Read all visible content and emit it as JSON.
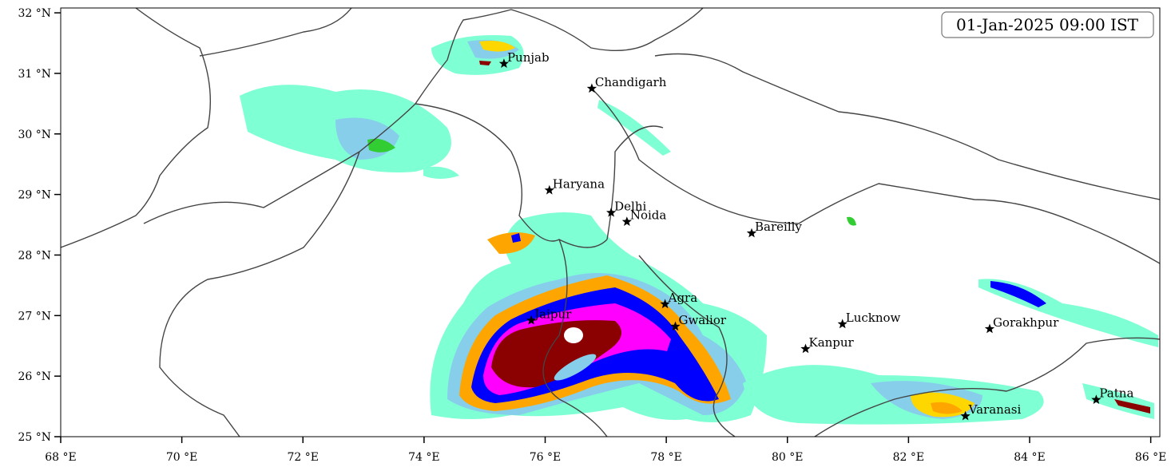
{
  "map": {
    "title": "01-Jan-2025 09:00 IST",
    "xlim": [
      68,
      86.15
    ],
    "ylim": [
      25,
      32.08
    ],
    "xticks": [
      {
        "value": 68,
        "label": "68 °E"
      },
      {
        "value": 70,
        "label": "70 °E"
      },
      {
        "value": 72,
        "label": "72 °E"
      },
      {
        "value": 74,
        "label": "74 °E"
      },
      {
        "value": 76,
        "label": "76 °E"
      },
      {
        "value": 78,
        "label": "78 °E"
      },
      {
        "value": 80,
        "label": "80 °E"
      },
      {
        "value": 82,
        "label": "82 °E"
      },
      {
        "value": 84,
        "label": "84 °E"
      },
      {
        "value": 86,
        "label": "86 °E"
      }
    ],
    "yticks": [
      {
        "value": 25,
        "label": "25 °N"
      },
      {
        "value": 26,
        "label": "26 °N"
      },
      {
        "value": 27,
        "label": "27 °N"
      },
      {
        "value": 28,
        "label": "28 °N"
      },
      {
        "value": 29,
        "label": "29 °N"
      },
      {
        "value": 30,
        "label": "30 °N"
      },
      {
        "value": 31,
        "label": "31 °N"
      },
      {
        "value": 32,
        "label": "32 °N"
      }
    ],
    "cities": [
      {
        "name": "Punjab",
        "lon": 75.32,
        "lat": 31.16
      },
      {
        "name": "Chandigarh",
        "lon": 76.77,
        "lat": 30.75
      },
      {
        "name": "Haryana",
        "lon": 76.07,
        "lat": 29.07
      },
      {
        "name": "Delhi",
        "lon": 77.09,
        "lat": 28.7
      },
      {
        "name": "Noida",
        "lon": 77.35,
        "lat": 28.55
      },
      {
        "name": "Bareilly",
        "lon": 79.41,
        "lat": 28.36
      },
      {
        "name": "Agra",
        "lon": 77.98,
        "lat": 27.19
      },
      {
        "name": "Jaipur",
        "lon": 75.77,
        "lat": 26.92
      },
      {
        "name": "Gwalior",
        "lon": 78.15,
        "lat": 26.82
      },
      {
        "name": "Lucknow",
        "lon": 80.91,
        "lat": 26.86
      },
      {
        "name": "Kanpur",
        "lon": 80.3,
        "lat": 26.45
      },
      {
        "name": "Gorakhpur",
        "lon": 83.34,
        "lat": 26.78
      },
      {
        "name": "Varanasi",
        "lon": 82.94,
        "lat": 25.34
      },
      {
        "name": "Patna",
        "lon": 85.1,
        "lat": 25.61
      }
    ]
  }
}
